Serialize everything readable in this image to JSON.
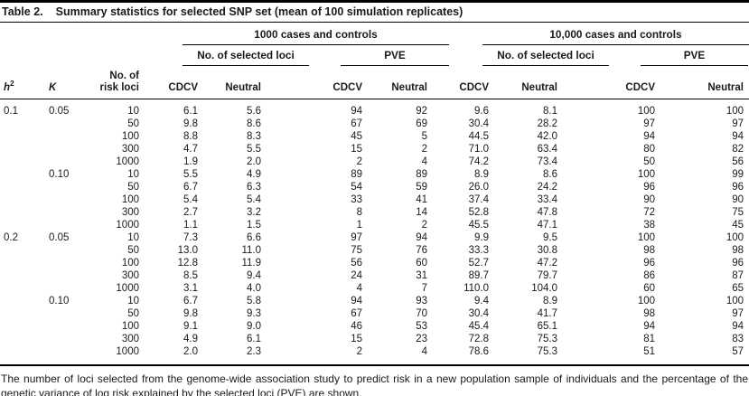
{
  "colors": {
    "text": "#1a1a1a",
    "background": "#ffffff",
    "rule": "#000000"
  },
  "table": {
    "title_label": "Table 2.",
    "title_text": "Summary statistics for selected SNP set (mean of 100 simulation replicates)",
    "col_groups": [
      {
        "label": "1000 cases and controls"
      },
      {
        "label": "10,000 cases and controls"
      }
    ],
    "sub_groups": [
      "No. of selected loci",
      "PVE",
      "No. of selected loci",
      "PVE"
    ],
    "columns": {
      "h2_base": "h",
      "h2_sup": "2",
      "k": "K",
      "risk_loci_line1": "No. of",
      "risk_loci_line2": "risk loci",
      "value_headers": [
        "CDCV",
        "Neutral",
        "CDCV",
        "Neutral",
        "CDCV",
        "Neutral",
        "CDCV",
        "Neutral"
      ]
    },
    "blocks": [
      {
        "h2": "0.1",
        "k": "0.05",
        "rows": [
          {
            "risk_loci": "10",
            "values": [
              "6.1",
              "5.6",
              "94",
              "92",
              "9.6",
              "8.1",
              "100",
              "100"
            ]
          },
          {
            "risk_loci": "50",
            "values": [
              "9.8",
              "8.6",
              "67",
              "69",
              "30.4",
              "28.2",
              "97",
              "97"
            ]
          },
          {
            "risk_loci": "100",
            "values": [
              "8.8",
              "8.3",
              "45",
              "5",
              "44.5",
              "42.0",
              "94",
              "94"
            ]
          },
          {
            "risk_loci": "300",
            "values": [
              "4.7",
              "5.5",
              "15",
              "2",
              "71.0",
              "63.4",
              "80",
              "82"
            ]
          },
          {
            "risk_loci": "1000",
            "values": [
              "1.9",
              "2.0",
              "2",
              "4",
              "74.2",
              "73.4",
              "50",
              "56"
            ]
          }
        ]
      },
      {
        "h2": "",
        "k": "0.10",
        "rows": [
          {
            "risk_loci": "10",
            "values": [
              "5.5",
              "4.9",
              "89",
              "89",
              "8.9",
              "8.6",
              "100",
              "99"
            ]
          },
          {
            "risk_loci": "50",
            "values": [
              "6.7",
              "6.3",
              "54",
              "59",
              "26.0",
              "24.2",
              "96",
              "96"
            ]
          },
          {
            "risk_loci": "100",
            "values": [
              "5.4",
              "5.4",
              "33",
              "41",
              "37.4",
              "33.4",
              "90",
              "90"
            ]
          },
          {
            "risk_loci": "300",
            "values": [
              "2.7",
              "3.2",
              "8",
              "14",
              "52.8",
              "47.8",
              "72",
              "75"
            ]
          },
          {
            "risk_loci": "1000",
            "values": [
              "1.1",
              "1.5",
              "1",
              "2",
              "45.5",
              "47.1",
              "38",
              "45"
            ]
          }
        ]
      },
      {
        "h2": "0.2",
        "k": "0.05",
        "rows": [
          {
            "risk_loci": "10",
            "values": [
              "7.3",
              "6.6",
              "97",
              "94",
              "9.9",
              "9.5",
              "100",
              "100"
            ]
          },
          {
            "risk_loci": "50",
            "values": [
              "13.0",
              "11.0",
              "75",
              "76",
              "33.3",
              "30.8",
              "98",
              "98"
            ]
          },
          {
            "risk_loci": "100",
            "values": [
              "12.8",
              "11.9",
              "56",
              "60",
              "52.7",
              "47.2",
              "96",
              "96"
            ]
          },
          {
            "risk_loci": "300",
            "values": [
              "8.5",
              "9.4",
              "24",
              "31",
              "89.7",
              "79.7",
              "86",
              "87"
            ]
          },
          {
            "risk_loci": "1000",
            "values": [
              "3.1",
              "4.0",
              "4",
              "7",
              "110.0",
              "104.0",
              "60",
              "65"
            ]
          }
        ]
      },
      {
        "h2": "",
        "k": "0.10",
        "rows": [
          {
            "risk_loci": "10",
            "values": [
              "6.7",
              "5.8",
              "94",
              "93",
              "9.4",
              "8.9",
              "100",
              "100"
            ]
          },
          {
            "risk_loci": "50",
            "values": [
              "9.8",
              "9.3",
              "67",
              "70",
              "30.4",
              "41.7",
              "98",
              "97"
            ]
          },
          {
            "risk_loci": "100",
            "values": [
              "9.1",
              "9.0",
              "46",
              "53",
              "45.4",
              "65.1",
              "94",
              "94"
            ]
          },
          {
            "risk_loci": "300",
            "values": [
              "4.9",
              "6.1",
              "15",
              "23",
              "72.8",
              "75.3",
              "81",
              "83"
            ]
          },
          {
            "risk_loci": "1000",
            "values": [
              "2.0",
              "2.3",
              "2",
              "4",
              "78.6",
              "75.3",
              "51",
              "57"
            ]
          }
        ]
      }
    ],
    "footnote": "The number of loci selected from the genome-wide association study to predict risk in a new population sample of individuals and the percentage of the genetic variance of log risk explained by the selected loci (PVE) are shown."
  }
}
